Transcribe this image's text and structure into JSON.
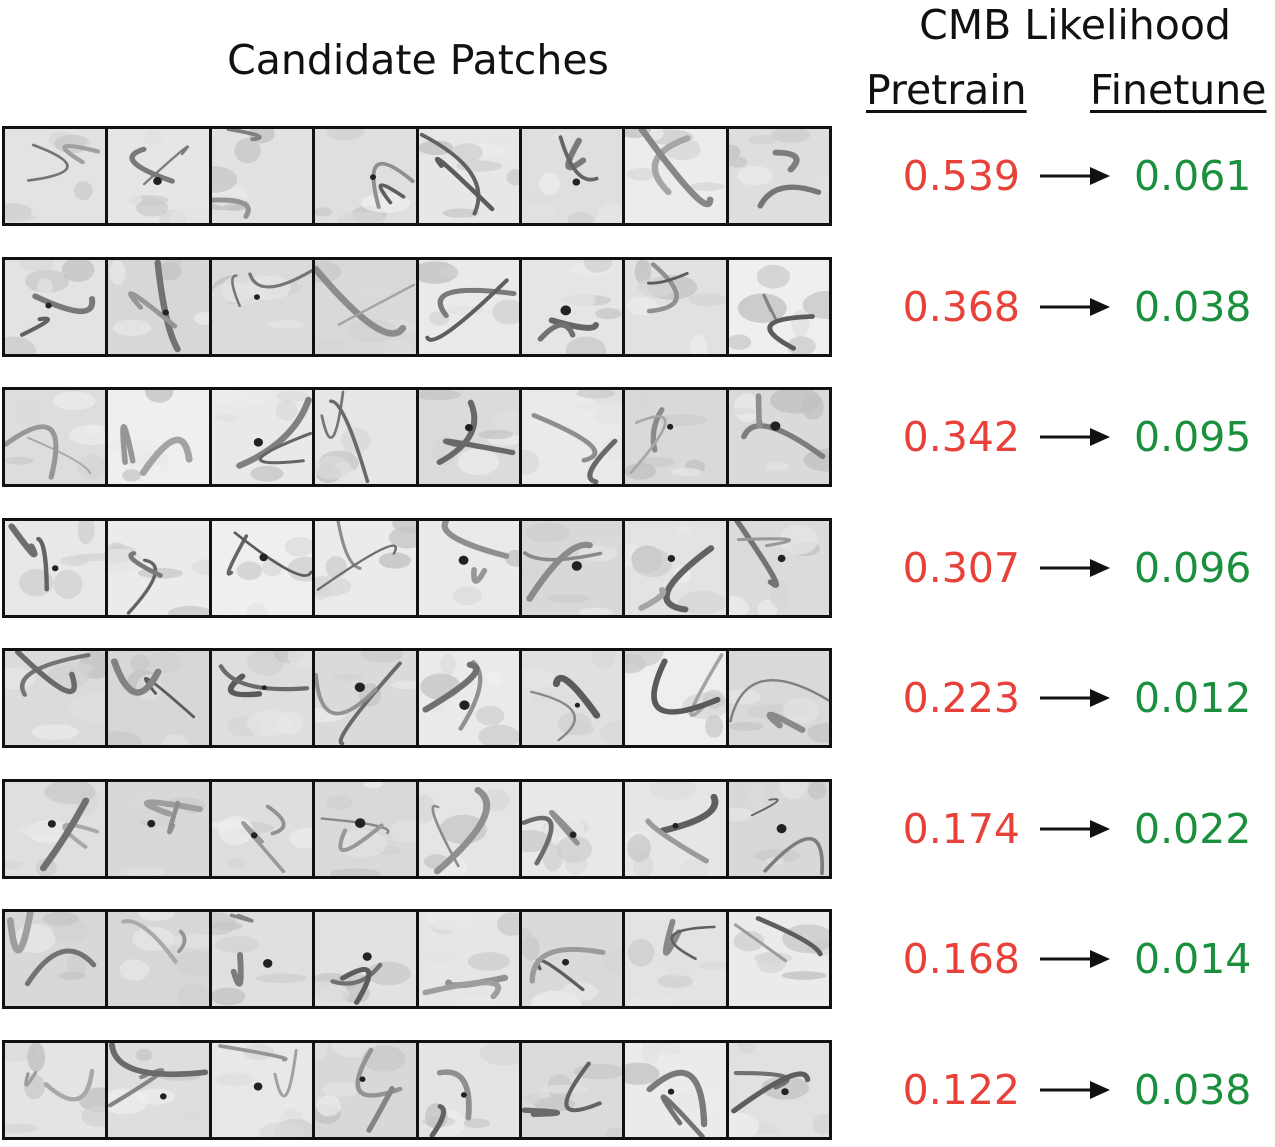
{
  "header": {
    "patches_title": "Candidate Patches",
    "likelihood_title": "CMB Likelihood",
    "pretrain_label": "Pretrain",
    "finetune_label": "Finetune"
  },
  "colors": {
    "pretrain": "#e8413a",
    "finetune": "#1a8f3c",
    "arrow": "#111111"
  },
  "rows": [
    {
      "pretrain": "0.539",
      "finetune": "0.061"
    },
    {
      "pretrain": "0.368",
      "finetune": "0.038"
    },
    {
      "pretrain": "0.342",
      "finetune": "0.095"
    },
    {
      "pretrain": "0.307",
      "finetune": "0.096"
    },
    {
      "pretrain": "0.223",
      "finetune": "0.012"
    },
    {
      "pretrain": "0.174",
      "finetune": "0.022"
    },
    {
      "pretrain": "0.168",
      "finetune": "0.014"
    },
    {
      "pretrain": "0.122",
      "finetune": "0.038"
    }
  ]
}
